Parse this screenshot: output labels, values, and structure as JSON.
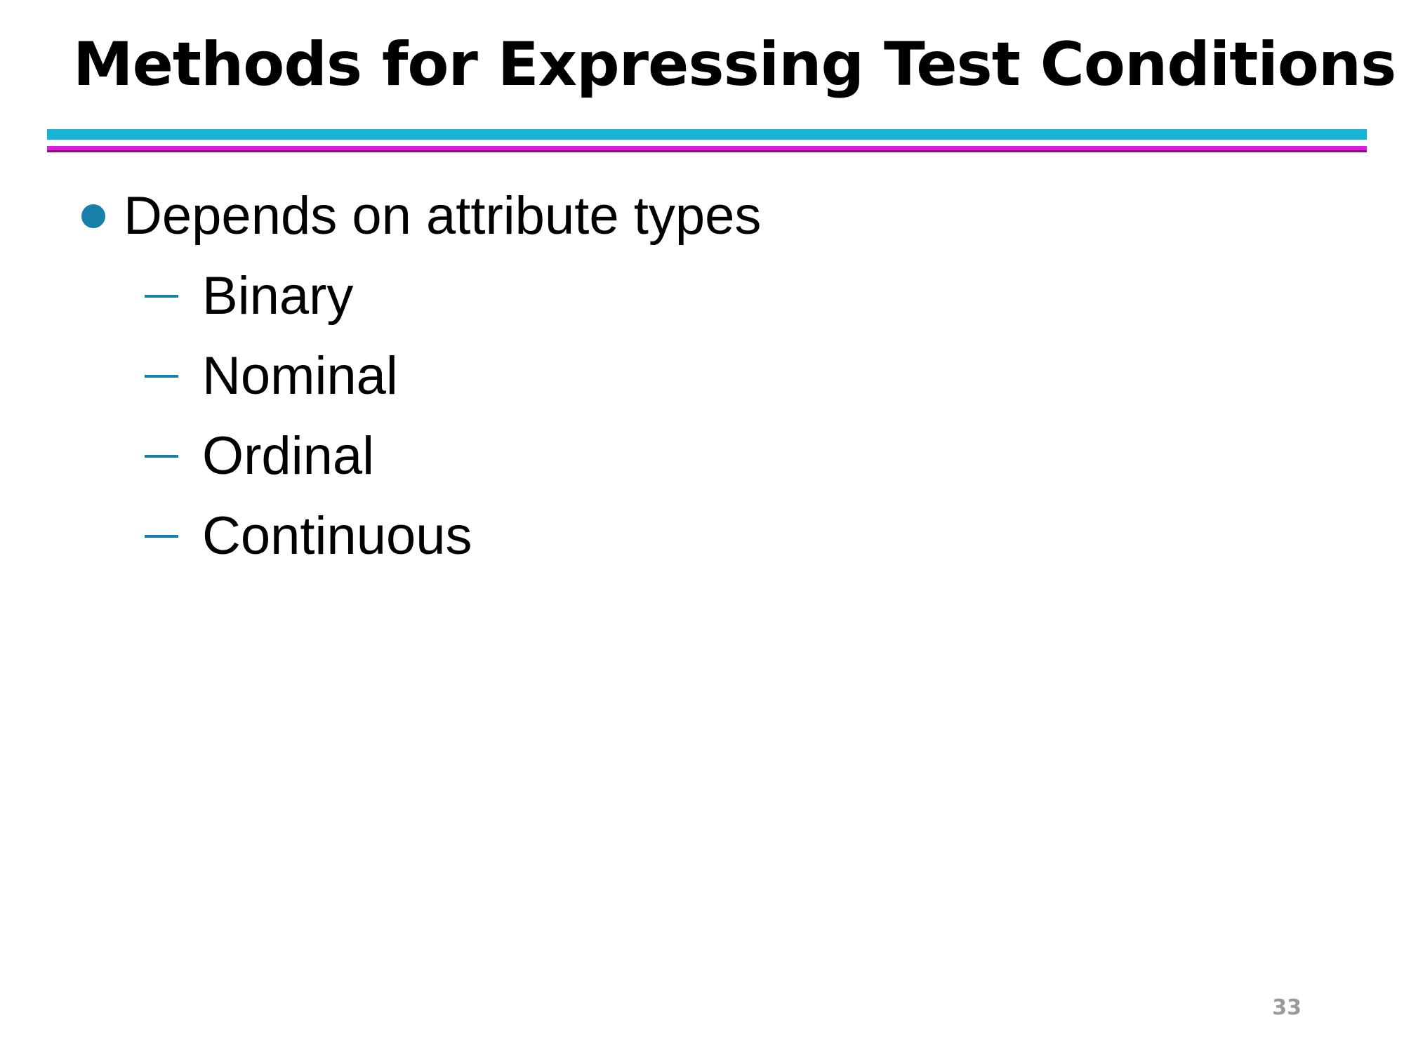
{
  "slide": {
    "title": "Methods for Expressing Test Conditions",
    "bullet": "Depends on attribute types",
    "sub_items": [
      "Binary",
      "Nominal",
      "Ordinal",
      "Continuous"
    ],
    "page_number": "33"
  },
  "colors": {
    "bullet_accent": "#1780a8",
    "rule_cyan": "#18b4d8",
    "rule_magenta": "#e41ae4",
    "page_number": "#9a9a9a"
  }
}
